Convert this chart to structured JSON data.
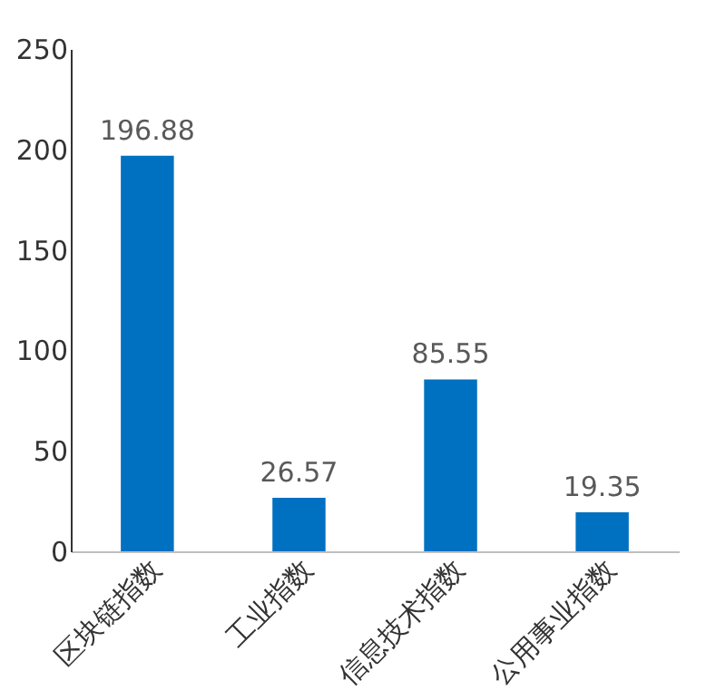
{
  "chart_data": {
    "type": "bar",
    "categories": [
      "区块链指数",
      "工业指数",
      "信息技术指数",
      "公用事业指数"
    ],
    "values": [
      196.88,
      26.57,
      85.55,
      19.35
    ],
    "color": "#0070c0",
    "ylim": [
      0,
      250
    ],
    "yticks": [
      0,
      50,
      100,
      150,
      200,
      250
    ],
    "grid": false,
    "data_labels": true
  }
}
